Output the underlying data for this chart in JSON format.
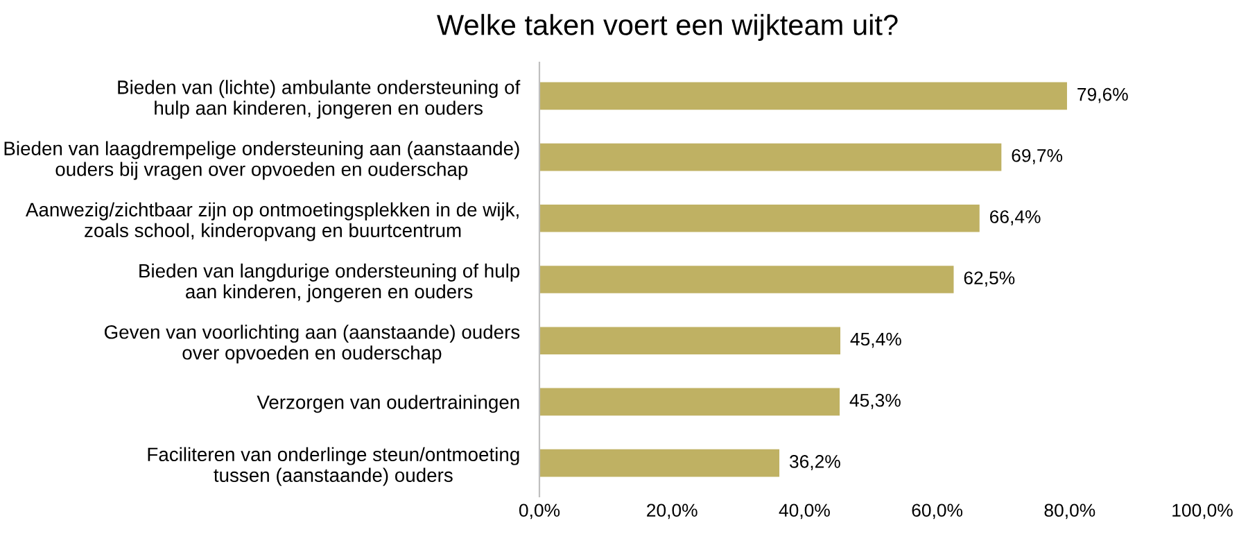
{
  "chart_data": {
    "type": "bar",
    "orientation": "horizontal",
    "title": "Welke taken voert een wijkteam uit?",
    "categories": [
      "Bieden van (lichte) ambulante ondersteuning of\nhulp aan kinderen, jongeren en ouders",
      "Bieden van laagdrempelige ondersteuning aan (aanstaande)\nouders bij vragen over opvoeden en ouderschap",
      "Aanwezig/zichtbaar zijn op ontmoetingsplekken in de wijk,\nzoals school, kinderopvang en buurtcentrum",
      "Bieden van langdurige ondersteuning of hulp\naan kinderen, jongeren en ouders",
      "Geven van voorlichting aan (aanstaande) ouders\nover opvoeden en ouderschap",
      "Verzorgen van oudertrainingen",
      "Faciliteren van onderlinge steun/ontmoeting\ntussen (aanstaande) ouders"
    ],
    "values": [
      79.6,
      69.7,
      66.4,
      62.5,
      45.4,
      45.3,
      36.2
    ],
    "value_labels": [
      "79,6%",
      "69,7%",
      "66,4%",
      "62,5%",
      "45,4%",
      "45,3%",
      "36,2%"
    ],
    "color": "#bfb163",
    "xlim": [
      0,
      100
    ],
    "xticks": [
      {
        "value": 0,
        "label": "0,0%"
      },
      {
        "value": 20,
        "label": "20,0%"
      },
      {
        "value": 40,
        "label": "40,0%"
      },
      {
        "value": 60,
        "label": "60,0%"
      },
      {
        "value": 80,
        "label": "80,0%"
      },
      {
        "value": 100,
        "label": "100,0%"
      }
    ],
    "grid": false,
    "legend": false
  }
}
